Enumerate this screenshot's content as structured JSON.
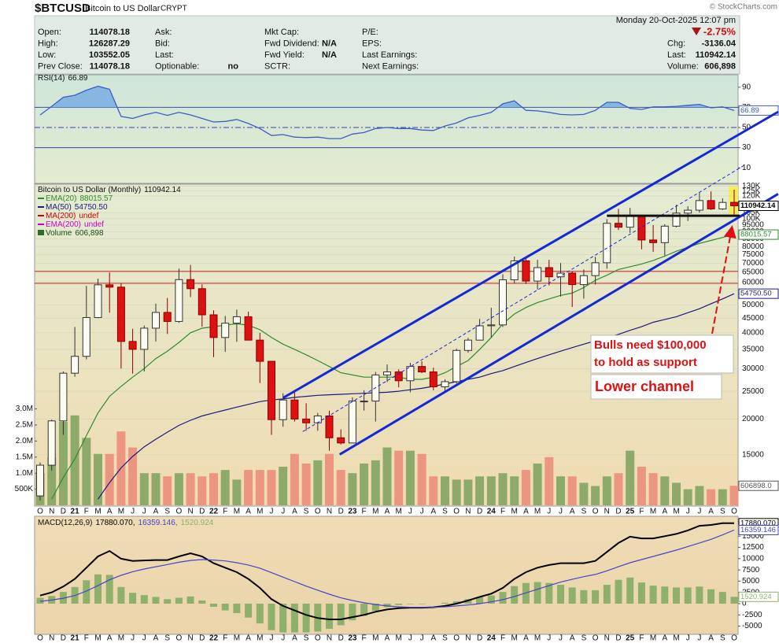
{
  "header": {
    "symbol": "$BTCUSD",
    "name": "Bitcoin to US Dollar",
    "exchange": "CRYPT",
    "copyright": "© StockCharts.com",
    "datetime": "Monday 20-Oct-2025 12:07 pm",
    "change_pct": "-2.75%",
    "columns": [
      [
        {
          "label": "Open:",
          "value": 114078.18
        },
        {
          "label": "High:",
          "value": 126287.29
        },
        {
          "label": "Low:",
          "value": 103552.05
        },
        {
          "label": "Prev Close:",
          "value": 114078.18
        }
      ],
      [
        {
          "label": "Ask:"
        },
        {
          "label": "Bid:"
        },
        {
          "label": "Last:"
        },
        {
          "label": "Optionable:",
          "value": "no"
        }
      ],
      [
        {
          "label": "Mkt Cap:"
        },
        {
          "label": "Fwd Dividend:",
          "value": "N/A"
        },
        {
          "label": "Fwd Yield:",
          "value": "N/A"
        },
        {
          "label": "SCTR:"
        }
      ],
      [
        {
          "label": "P/E:"
        },
        {
          "label": "EPS:"
        },
        {
          "label": "Last Earnings:"
        },
        {
          "label": "Next Earnings:"
        }
      ]
    ],
    "right": [
      {
        "label": "Chg:",
        "value": -3136.04
      },
      {
        "label": "Last:",
        "value": 110942.14
      },
      {
        "label": "Volume:",
        "value": "606,898"
      }
    ]
  },
  "chart_data": [
    {
      "type": "line",
      "ylim": [
        0,
        100
      ],
      "yticks": [
        10,
        30,
        50,
        70,
        90
      ],
      "level_color": "#3344aa",
      "levels": [
        {
          "value": 70
        },
        {
          "value": 50,
          "dashed": true
        },
        {
          "value": 30
        }
      ],
      "fill_above": 70,
      "fill_color": "#86b6e2",
      "series": [
        {
          "name": "RSI(14)",
          "color": "#3d5cc4",
          "values": [
            62.5,
            71,
            80,
            82,
            87,
            91,
            88,
            61,
            59,
            62.5,
            65,
            62,
            65,
            62.5,
            59,
            55.5,
            56,
            58,
            54,
            49,
            42,
            43,
            40.5,
            40,
            40.5,
            39,
            39,
            43.5,
            45,
            49,
            50,
            49,
            49,
            47.5,
            47,
            51.5,
            54.5,
            59.5,
            62,
            65,
            73.5,
            76.5,
            67,
            66.5,
            65,
            63,
            62.5,
            63,
            67,
            75,
            75,
            69,
            68,
            70.5,
            70.5,
            71,
            72,
            73,
            69.5,
            70.5,
            66.89
          ]
        }
      ]
    },
    {
      "type": "candlestick",
      "title": "Bitcoin to US Dollar (Monthly)",
      "up_color": "#fbfbf2",
      "down_color": "#dd1111",
      "log_scale": true,
      "grid": true,
      "ylim": [
        10000,
        132000
      ],
      "yticks": [
        {
          "value": 130000,
          "label": "130K"
        },
        {
          "value": 125000,
          "label": "125K"
        },
        {
          "value": 120000,
          "label": "120K"
        },
        {
          "value": 105000,
          "label": "105K"
        },
        {
          "value": 100000,
          "label": "100K"
        },
        95000,
        90000,
        85000,
        80000,
        75000,
        70000,
        65000,
        60000,
        50000,
        45000,
        40000,
        35000,
        30000,
        25000,
        20000,
        15000
      ],
      "categories": [
        "O",
        "N",
        "D",
        "21",
        "F",
        "M",
        "A",
        "M",
        "J",
        "J",
        "A",
        "S",
        "O",
        "N",
        "D",
        "22",
        "F",
        "M",
        "A",
        "M",
        "J",
        "J",
        "A",
        "S",
        "O",
        "N",
        "D",
        "23",
        "F",
        "M",
        "A",
        "M",
        "J",
        "J",
        "A",
        "S",
        "O",
        "N",
        "D",
        "24",
        "F",
        "M",
        "A",
        "M",
        "J",
        "J",
        "A",
        "S",
        "O",
        "N",
        "D",
        "25",
        "F",
        "M",
        "A",
        "M",
        "J",
        "J",
        "A",
        "S",
        "O"
      ],
      "open": [
        10780,
        13800,
        19700,
        28900,
        33100,
        45200,
        58800,
        57700,
        37300,
        35000,
        41500,
        47100,
        43800,
        61300,
        57000,
        46200,
        38500,
        43200,
        45500,
        37700,
        31800,
        19900,
        23300,
        20000,
        19400,
        20500,
        17200,
        16500,
        23100,
        23100,
        28500,
        29200,
        27200,
        30500,
        29200,
        25900,
        27000,
        34700,
        37700,
        42300,
        42600,
        61200,
        71300,
        60600,
        67500,
        62700,
        64600,
        58900,
        63300,
        70200,
        96400,
        93400,
        102400,
        84300,
        82500,
        94200,
        104600,
        107100,
        115700,
        108200,
        114078.18
      ],
      "high": [
        14100,
        19900,
        29300,
        41900,
        58300,
        61800,
        64900,
        59500,
        41300,
        42400,
        50500,
        52900,
        67000,
        69000,
        59000,
        47900,
        45800,
        48200,
        47400,
        40000,
        31900,
        24600,
        25200,
        22700,
        21000,
        21400,
        18400,
        23800,
        25200,
        29200,
        31000,
        29800,
        31400,
        31800,
        30200,
        27500,
        35200,
        38400,
        44700,
        48900,
        64000,
        73800,
        72700,
        71900,
        71900,
        70000,
        65500,
        66500,
        73600,
        99600,
        108300,
        109100,
        102500,
        95000,
        95700,
        111900,
        110500,
        123200,
        124500,
        117900,
        126287.29
      ],
      "low": [
        10380,
        13200,
        17600,
        28100,
        32300,
        45000,
        47000,
        30000,
        28800,
        29300,
        37300,
        39600,
        43300,
        53300,
        42000,
        32900,
        34300,
        37200,
        37600,
        26700,
        17600,
        18800,
        19600,
        18200,
        18200,
        15500,
        16300,
        16500,
        21400,
        19600,
        26900,
        25800,
        24800,
        28900,
        25200,
        24900,
        26600,
        34100,
        37600,
        38500,
        41900,
        59300,
        59200,
        56600,
        58500,
        53500,
        49200,
        52600,
        58900,
        66900,
        91300,
        89200,
        78200,
        76600,
        74400,
        93300,
        98200,
        105100,
        107300,
        107300,
        103552.05
      ],
      "close": [
        13800,
        19700,
        28900,
        33100,
        45200,
        58800,
        57700,
        37300,
        35000,
        41500,
        47100,
        43800,
        61300,
        57000,
        46200,
        38500,
        43200,
        45500,
        37700,
        31800,
        19900,
        23300,
        20000,
        19400,
        20500,
        17200,
        16500,
        23100,
        23100,
        28500,
        29200,
        27200,
        30500,
        29200,
        25900,
        27000,
        34700,
        37700,
        42300,
        42600,
        61200,
        71300,
        60600,
        67500,
        62700,
        64600,
        58900,
        63300,
        70200,
        96400,
        93400,
        102400,
        84300,
        82500,
        94200,
        104600,
        107100,
        115700,
        108200,
        114000,
        110942.14
      ],
      "overlays": [
        {
          "name": "EMA(20)",
          "color": "#2e8b2e",
          "values": [
            null,
            10500,
            12500,
            14500,
            17500,
            21000,
            24000,
            26000,
            28000,
            30000,
            32500,
            34500,
            37000,
            40000,
            41500,
            42000,
            42500,
            43000,
            42500,
            41000,
            38500,
            36500,
            35000,
            33500,
            32000,
            30500,
            29000,
            28500,
            28000,
            28000,
            28000,
            28000,
            27500,
            27500,
            28000,
            29000,
            30500,
            32000,
            35000,
            38500,
            43000,
            46500,
            49000,
            51000,
            52500,
            54000,
            55000,
            57500,
            61000,
            63500,
            66500,
            68000,
            69500,
            71500,
            74000,
            77000,
            79500,
            82000,
            84000,
            86000,
            88015.57
          ]
        },
        {
          "name": "MA(50)",
          "color": "#1a1a80",
          "value_label": "54750.50",
          "values": [
            null,
            null,
            null,
            null,
            null,
            10500,
            12000,
            13500,
            14800,
            16000,
            17000,
            18000,
            19000,
            19800,
            20500,
            21000,
            21500,
            22000,
            22500,
            23000,
            23300,
            23500,
            23800,
            24000,
            24200,
            24300,
            24400,
            24500,
            24600,
            24700,
            24800,
            25000,
            25300,
            25600,
            26000,
            26500,
            27000,
            27500,
            28000,
            28800,
            29500,
            30500,
            31500,
            32500,
            33500,
            34500,
            35500,
            36500,
            37500,
            38500,
            39500,
            40800,
            42000,
            43500,
            44500,
            45500,
            47000,
            48500,
            50500,
            52500,
            54750.5
          ]
        },
        {
          "name": "MA(200)",
          "color": "#cc0000",
          "value_label": "undef"
        },
        {
          "name": "EMA(200)",
          "color": "#cc00cc",
          "value_label": "undef"
        }
      ],
      "volume": {
        "name": "Volume",
        "value_label": "606,898",
        "tag_label": "606898.0",
        "up_color": "#8daa6b",
        "down_color": "#ec9682",
        "ylim": [
          0,
          10000000
        ],
        "yticks": [
          {
            "value": 500000,
            "label": "500K"
          },
          {
            "value": 1000000,
            "label": "1.0M"
          },
          {
            "value": 1500000,
            "label": "1.5M"
          },
          {
            "value": 2000000,
            "label": "2.0M"
          },
          {
            "value": 2500000,
            "label": "2.5M"
          },
          {
            "value": 3000000,
            "label": "3.0M"
          }
        ],
        "values": [
          1000000,
          1500000,
          2600000,
          2800000,
          2100000,
          1600000,
          1600000,
          2300000,
          1800000,
          1000000,
          1000000,
          900000,
          1000000,
          1000000,
          900000,
          1000000,
          1100000,
          800000,
          1100000,
          1100000,
          1100000,
          1200000,
          1600000,
          1300000,
          1400000,
          1600000,
          1100000,
          1000000,
          1300000,
          1400000,
          1800000,
          1700000,
          1700000,
          1600000,
          900000,
          900000,
          800000,
          800000,
          900000,
          900000,
          1000000,
          900000,
          1100000,
          1300000,
          1500000,
          900000,
          900000,
          700000,
          600000,
          900000,
          1000000,
          1700000,
          1200000,
          1000000,
          900000,
          700000,
          500000,
          600000,
          500000,
          500000,
          606898
        ]
      },
      "reference_lines": [
        {
          "value": 65500,
          "color": "#cc2222"
        },
        {
          "value": 59500,
          "color": "#cc2222"
        }
      ],
      "trendlines": [
        {
          "x": [
            21.0,
            63.8
          ],
          "values": [
            23700,
            236000
          ],
          "color": "#1428d8"
        },
        {
          "x": [
            25.9,
            63.8
          ],
          "values": [
            15040,
            122000
          ],
          "color": "#1428d8"
        },
        {
          "x": [
            22.7,
            60.8
          ],
          "values": [
            18070,
            153000
          ],
          "color": "#1428d8",
          "dashed": true
        },
        {
          "x": [
            49,
            60.5
          ],
          "values": [
            102400,
            102400
          ],
          "color": "#111111"
        }
      ],
      "annotations": [
        {
          "lines": [
            "Bulls need $100,000",
            "to hold as support"
          ]
        },
        {
          "lines": [
            "Lower channel"
          ]
        }
      ]
    },
    {
      "type": "macd",
      "name": "MACD(12,26,9)",
      "ylim": [
        -6650,
        19250
      ],
      "yticks": [
        15000,
        12500,
        10000,
        7500,
        5000,
        2500,
        0,
        -2500,
        -5000
      ],
      "series": [
        {
          "kind": "line",
          "color": "#000000",
          "legend": "17880.070,",
          "value_label": "17880.070",
          "values": [
            1800,
            2500,
            3800,
            5500,
            8000,
            10500,
            11700,
            10000,
            9500,
            9600,
            9700,
            9700,
            10500,
            11200,
            10500,
            9000,
            8000,
            7000,
            5500,
            3500,
            1000,
            -500,
            -1500,
            -2500,
            -3200,
            -3500,
            -3500,
            -3000,
            -2500,
            -1800,
            -1300,
            -1000,
            -900,
            -900,
            -800,
            -500,
            0,
            700,
            1500,
            2200,
            3500,
            5500,
            7000,
            8000,
            8600,
            9000,
            9000,
            9000,
            9500,
            11500,
            13500,
            14900,
            14500,
            14500,
            15000,
            15500,
            16300,
            17300,
            17500,
            17900,
            17880.07
          ]
        },
        {
          "kind": "line",
          "color": "#4444cc",
          "legend": "16359.146,",
          "value_label": "16359.146",
          "values": [
            500,
            800,
            1200,
            1800,
            2800,
            4000,
            5300,
            6300,
            7100,
            7700,
            8200,
            8700,
            9200,
            9600,
            9800,
            9700,
            9500,
            9100,
            8600,
            7900,
            6900,
            5900,
            4900,
            3900,
            3000,
            2100,
            1300,
            700,
            200,
            -200,
            -500,
            -700,
            -800,
            -800,
            -800,
            -700,
            -500,
            -300,
            0,
            400,
            900,
            1600,
            2400,
            3200,
            4000,
            4800,
            5400,
            6000,
            6500,
            7300,
            8200,
            9100,
            9800,
            10500,
            11200,
            11900,
            12700,
            13500,
            14300,
            15300,
            16359.146
          ]
        },
        {
          "kind": "bar",
          "color": "#8db06a",
          "legend": "1520.924",
          "value_label": "1520.924",
          "values": [
            1300,
            1700,
            2600,
            3700,
            5200,
            6500,
            6400,
            3700,
            2400,
            1900,
            1500,
            1000,
            1300,
            1600,
            700,
            -700,
            -1500,
            -2100,
            -3100,
            -4400,
            -5900,
            -6400,
            -6400,
            -6400,
            -6200,
            -5600,
            -4800,
            -3700,
            -2700,
            -1600,
            -800,
            -300,
            -100,
            -100,
            0,
            200,
            500,
            1000,
            1500,
            1800,
            2600,
            3900,
            4600,
            4800,
            4600,
            4200,
            3600,
            3000,
            3000,
            4200,
            5300,
            5800,
            4700,
            4000,
            3800,
            3600,
            3600,
            3800,
            3200,
            2600,
            1520.924
          ]
        }
      ]
    }
  ]
}
